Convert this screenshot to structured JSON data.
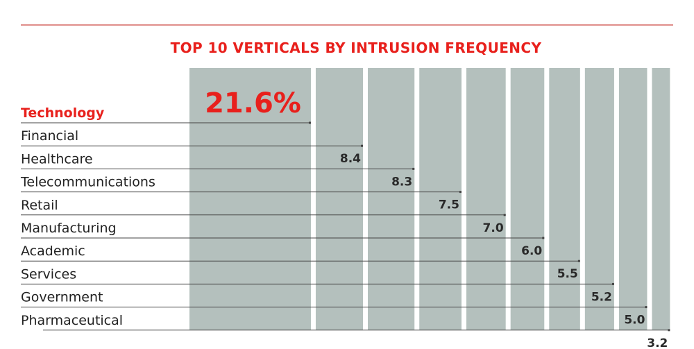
{
  "colors": {
    "accent": "#e8201c",
    "bar": "#b4c0bd",
    "leader": "#444444",
    "text": "#222222",
    "rule": "#cc4a44"
  },
  "chart_data": {
    "type": "bar",
    "title": "TOP 10 VERTICALS BY INTRUSION FREQUENCY",
    "categories": [
      "Technology",
      "Financial",
      "Healthcare",
      "Telecommunications",
      "Retail",
      "Manufacturing",
      "Academic",
      "Services",
      "Government",
      "Pharmaceutical"
    ],
    "values": [
      21.6,
      8.4,
      8.3,
      7.5,
      7.0,
      6.0,
      5.5,
      5.2,
      5.0,
      3.2
    ],
    "value_labels": [
      "21.6%",
      "8.4",
      "8.3",
      "7.5",
      "7.0",
      "6.0",
      "5.5",
      "5.2",
      "5.0",
      "3.2"
    ],
    "highlight_index": 0,
    "xlabel": "",
    "ylabel": "",
    "grid": false,
    "legend": "none"
  }
}
